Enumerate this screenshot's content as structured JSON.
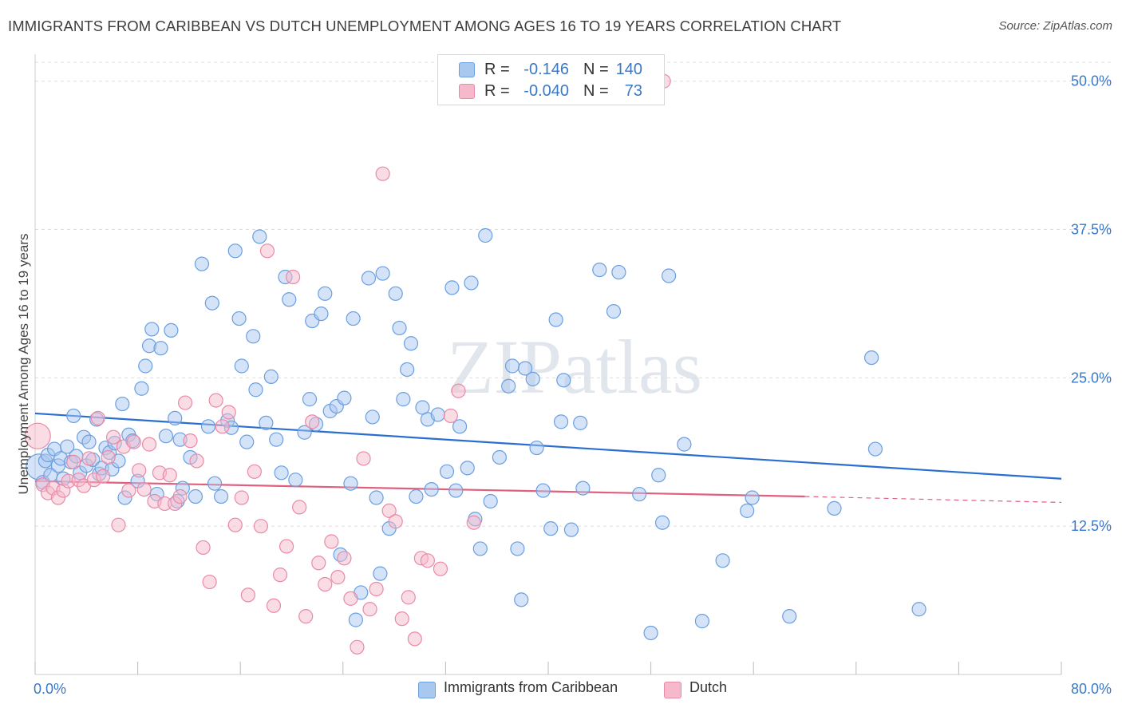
{
  "title": "IMMIGRANTS FROM CARIBBEAN VS DUTCH UNEMPLOYMENT AMONG AGES 16 TO 19 YEARS CORRELATION CHART",
  "source": "Source: ZipAtlas.com",
  "watermark": "ZIPatlas",
  "colors": {
    "blue_fill": "#a9c8f0",
    "blue_stroke": "#6a9fe0",
    "blue_line": "#2a6fcf",
    "pink_fill": "#f5b9cb",
    "pink_stroke": "#e98aa8",
    "pink_line": "#e0607f",
    "tick_text": "#3a78c9",
    "grid": "#dddddd"
  },
  "legend": {
    "rows": [
      {
        "r_label": "R =",
        "r_value": "-0.146",
        "n_label": "N =",
        "n_value": "140"
      },
      {
        "r_label": "R =",
        "r_value": "-0.040",
        "n_label": "N =",
        "n_value": "73"
      }
    ]
  },
  "bottom_legend": {
    "series1": "Immigrants from Caribbean",
    "series2": "Dutch"
  },
  "chart_data": {
    "type": "scatter",
    "xlabel": "",
    "ylabel": "Unemployment Among Ages 16 to 19 years",
    "xlim": [
      0,
      80
    ],
    "ylim": [
      0,
      52
    ],
    "x_tick_labels": [
      "0.0%",
      "80.0%"
    ],
    "y_ticks": [
      12.5,
      25.0,
      37.5,
      50.0
    ],
    "y_tick_labels": [
      "12.5%",
      "25.0%",
      "37.5%",
      "50.0%"
    ],
    "grid": "horizontal dashed",
    "legend_position": "top-center",
    "series": [
      {
        "name": "Immigrants from Caribbean",
        "color": "blue",
        "r": -0.146,
        "n": 140,
        "trend": {
          "x": [
            0,
            80
          ],
          "y": [
            22.0,
            16.5
          ]
        },
        "points": [
          [
            0.3,
            17.5
          ],
          [
            0.6,
            16.2
          ],
          [
            0.8,
            18.0
          ],
          [
            1.0,
            18.5
          ],
          [
            1.2,
            16.8
          ],
          [
            1.5,
            19.0
          ],
          [
            1.8,
            17.6
          ],
          [
            2.0,
            18.2
          ],
          [
            2.2,
            16.5
          ],
          [
            2.5,
            19.2
          ],
          [
            2.8,
            17.9
          ],
          [
            3.0,
            21.8
          ],
          [
            3.2,
            18.4
          ],
          [
            3.5,
            17.0
          ],
          [
            3.8,
            20.0
          ],
          [
            4.0,
            17.6
          ],
          [
            4.2,
            19.6
          ],
          [
            4.5,
            18.1
          ],
          [
            4.8,
            21.5
          ],
          [
            5.0,
            16.9
          ],
          [
            5.2,
            17.4
          ],
          [
            5.5,
            19.1
          ],
          [
            5.8,
            18.7
          ],
          [
            6.0,
            17.3
          ],
          [
            6.2,
            19.5
          ],
          [
            6.5,
            18.0
          ],
          [
            6.8,
            22.8
          ],
          [
            7.0,
            14.9
          ],
          [
            7.3,
            20.2
          ],
          [
            7.6,
            19.7
          ],
          [
            8.0,
            16.3
          ],
          [
            8.3,
            24.1
          ],
          [
            8.6,
            26.0
          ],
          [
            8.9,
            27.7
          ],
          [
            9.1,
            29.1
          ],
          [
            9.5,
            15.2
          ],
          [
            9.8,
            27.5
          ],
          [
            10.2,
            20.1
          ],
          [
            10.6,
            29.0
          ],
          [
            10.9,
            21.6
          ],
          [
            11.1,
            14.6
          ],
          [
            11.3,
            19.8
          ],
          [
            11.5,
            15.7
          ],
          [
            12.1,
            18.3
          ],
          [
            12.5,
            15.0
          ],
          [
            13.0,
            34.6
          ],
          [
            13.5,
            20.9
          ],
          [
            13.8,
            31.3
          ],
          [
            14.0,
            16.1
          ],
          [
            14.5,
            15.0
          ],
          [
            15.0,
            21.4
          ],
          [
            15.3,
            20.8
          ],
          [
            15.6,
            35.7
          ],
          [
            15.9,
            30.0
          ],
          [
            16.1,
            26.0
          ],
          [
            16.5,
            19.6
          ],
          [
            17.0,
            28.5
          ],
          [
            17.2,
            24.0
          ],
          [
            17.5,
            36.9
          ],
          [
            18.0,
            21.2
          ],
          [
            18.4,
            25.1
          ],
          [
            18.8,
            19.8
          ],
          [
            19.2,
            17.0
          ],
          [
            19.5,
            33.5
          ],
          [
            19.8,
            31.6
          ],
          [
            20.3,
            16.4
          ],
          [
            21.0,
            20.4
          ],
          [
            21.4,
            23.2
          ],
          [
            21.6,
            29.8
          ],
          [
            21.9,
            21.1
          ],
          [
            22.3,
            30.4
          ],
          [
            22.6,
            32.1
          ],
          [
            23.0,
            22.2
          ],
          [
            23.5,
            22.6
          ],
          [
            23.8,
            10.1
          ],
          [
            24.1,
            23.3
          ],
          [
            24.6,
            16.1
          ],
          [
            24.8,
            30.0
          ],
          [
            25.0,
            4.6
          ],
          [
            25.4,
            6.9
          ],
          [
            26.0,
            33.4
          ],
          [
            26.3,
            21.7
          ],
          [
            26.6,
            14.9
          ],
          [
            26.9,
            8.5
          ],
          [
            27.1,
            33.8
          ],
          [
            27.6,
            12.3
          ],
          [
            28.1,
            32.1
          ],
          [
            28.4,
            29.2
          ],
          [
            28.7,
            23.2
          ],
          [
            29.0,
            25.7
          ],
          [
            29.3,
            27.9
          ],
          [
            29.7,
            15.0
          ],
          [
            30.2,
            22.5
          ],
          [
            30.6,
            21.5
          ],
          [
            30.9,
            15.6
          ],
          [
            31.4,
            21.9
          ],
          [
            32.1,
            17.1
          ],
          [
            32.5,
            32.6
          ],
          [
            32.8,
            15.5
          ],
          [
            33.1,
            20.9
          ],
          [
            33.7,
            17.4
          ],
          [
            34.0,
            33.0
          ],
          [
            34.3,
            13.1
          ],
          [
            34.7,
            10.6
          ],
          [
            35.1,
            37.0
          ],
          [
            35.5,
            14.6
          ],
          [
            36.2,
            18.3
          ],
          [
            36.9,
            24.3
          ],
          [
            37.2,
            26.0
          ],
          [
            37.6,
            10.6
          ],
          [
            37.9,
            6.3
          ],
          [
            38.2,
            25.8
          ],
          [
            38.8,
            24.9
          ],
          [
            39.1,
            19.1
          ],
          [
            39.6,
            15.5
          ],
          [
            40.2,
            12.3
          ],
          [
            40.6,
            29.9
          ],
          [
            41.0,
            21.3
          ],
          [
            41.2,
            24.8
          ],
          [
            41.8,
            12.2
          ],
          [
            42.5,
            21.2
          ],
          [
            42.7,
            15.7
          ],
          [
            44.0,
            34.1
          ],
          [
            45.1,
            30.6
          ],
          [
            45.5,
            33.9
          ],
          [
            47.1,
            15.2
          ],
          [
            48.0,
            3.5
          ],
          [
            48.6,
            16.8
          ],
          [
            48.9,
            12.8
          ],
          [
            49.4,
            33.6
          ],
          [
            50.6,
            19.4
          ],
          [
            52.0,
            4.5
          ],
          [
            53.6,
            9.6
          ],
          [
            55.5,
            13.8
          ],
          [
            55.9,
            14.9
          ],
          [
            58.8,
            4.9
          ],
          [
            62.3,
            14.0
          ],
          [
            65.2,
            26.7
          ],
          [
            65.5,
            19.0
          ],
          [
            68.9,
            5.5
          ]
        ]
      },
      {
        "name": "Dutch",
        "color": "pink",
        "r": -0.04,
        "n": 73,
        "trend": {
          "x": [
            0,
            60
          ],
          "y": [
            16.3,
            15.0
          ]
        },
        "trend_dashed": {
          "x": [
            60,
            80
          ],
          "y": [
            15.0,
            14.5
          ]
        },
        "points": [
          [
            0.2,
            20.1
          ],
          [
            0.6,
            16.0
          ],
          [
            1.0,
            15.3
          ],
          [
            1.4,
            15.7
          ],
          [
            1.8,
            14.9
          ],
          [
            2.2,
            15.5
          ],
          [
            2.6,
            16.3
          ],
          [
            3.0,
            17.9
          ],
          [
            3.4,
            16.4
          ],
          [
            3.8,
            15.9
          ],
          [
            4.2,
            18.2
          ],
          [
            4.6,
            16.4
          ],
          [
            4.9,
            21.6
          ],
          [
            5.3,
            16.7
          ],
          [
            5.7,
            18.3
          ],
          [
            6.1,
            20.0
          ],
          [
            6.5,
            12.6
          ],
          [
            6.9,
            19.2
          ],
          [
            7.3,
            15.5
          ],
          [
            7.7,
            19.6
          ],
          [
            8.1,
            17.2
          ],
          [
            8.5,
            15.6
          ],
          [
            8.9,
            19.4
          ],
          [
            9.3,
            14.6
          ],
          [
            9.7,
            17.0
          ],
          [
            10.1,
            14.4
          ],
          [
            10.5,
            16.8
          ],
          [
            10.9,
            14.4
          ],
          [
            11.3,
            15.0
          ],
          [
            11.7,
            22.9
          ],
          [
            12.1,
            19.7
          ],
          [
            12.6,
            18.0
          ],
          [
            13.1,
            10.7
          ],
          [
            13.6,
            7.8
          ],
          [
            14.1,
            23.1
          ],
          [
            14.6,
            20.9
          ],
          [
            15.1,
            22.1
          ],
          [
            15.6,
            12.6
          ],
          [
            16.1,
            14.9
          ],
          [
            16.6,
            6.7
          ],
          [
            17.1,
            17.1
          ],
          [
            17.6,
            12.5
          ],
          [
            18.1,
            35.7
          ],
          [
            18.6,
            5.8
          ],
          [
            19.1,
            8.4
          ],
          [
            19.6,
            10.8
          ],
          [
            20.1,
            33.5
          ],
          [
            20.6,
            14.1
          ],
          [
            21.1,
            4.9
          ],
          [
            21.6,
            21.3
          ],
          [
            22.1,
            9.4
          ],
          [
            22.6,
            7.6
          ],
          [
            23.1,
            11.2
          ],
          [
            23.6,
            8.2
          ],
          [
            24.1,
            9.8
          ],
          [
            24.6,
            6.4
          ],
          [
            25.1,
            2.3
          ],
          [
            25.6,
            18.2
          ],
          [
            26.1,
            5.5
          ],
          [
            26.6,
            7.2
          ],
          [
            27.1,
            42.2
          ],
          [
            27.6,
            13.8
          ],
          [
            28.1,
            12.9
          ],
          [
            28.6,
            4.7
          ],
          [
            29.1,
            6.5
          ],
          [
            29.6,
            3.0
          ],
          [
            30.1,
            9.8
          ],
          [
            30.6,
            9.6
          ],
          [
            31.6,
            8.9
          ],
          [
            32.4,
            21.8
          ],
          [
            33.0,
            23.9
          ],
          [
            34.2,
            12.8
          ],
          [
            49.0,
            50.0
          ]
        ]
      }
    ]
  }
}
